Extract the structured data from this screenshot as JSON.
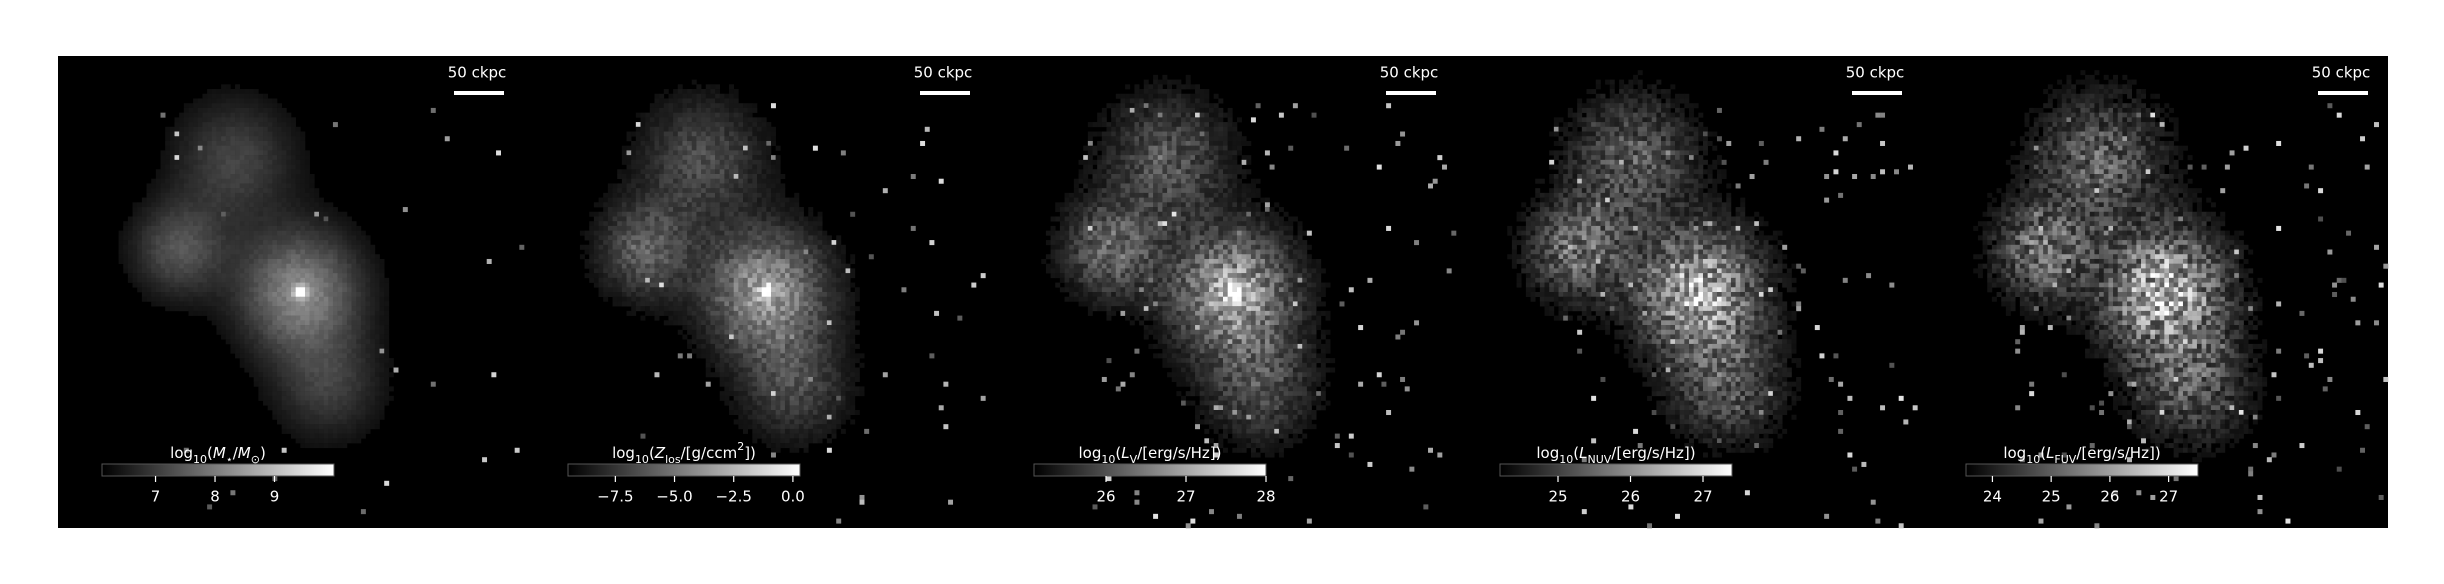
{
  "chart_data": [
    {
      "type": "image",
      "scale_bar": "50 ckpc",
      "colorbar_label": [
        {
          "t": "log"
        },
        {
          "t": "10",
          "sub": true
        },
        {
          "t": "("
        },
        {
          "t": "M",
          "it": true
        },
        {
          "t": "⋆",
          "sub": true
        },
        {
          "t": "/"
        },
        {
          "t": "M",
          "it": true
        },
        {
          "t": "⊙",
          "sub": true
        },
        {
          "t": ")"
        }
      ],
      "clim": [
        6.1,
        10.0
      ],
      "cticks": [
        7,
        8,
        9
      ]
    },
    {
      "type": "image",
      "scale_bar": "50 ckpc",
      "colorbar_label": [
        {
          "t": "log"
        },
        {
          "t": "10",
          "sub": true
        },
        {
          "t": "("
        },
        {
          "t": "Z",
          "it": true
        },
        {
          "t": "los",
          "sub": true
        },
        {
          "t": "/[g/ccm"
        },
        {
          "t": "2",
          "sup": true
        },
        {
          "t": "])"
        }
      ],
      "clim": [
        -9.5,
        0.3
      ],
      "cticks": [
        {
          "value": -7.5,
          "label": "−7.5"
        },
        {
          "value": -5.0,
          "label": "−5.0"
        },
        {
          "value": -2.5,
          "label": "−2.5"
        },
        {
          "value": 0.0,
          "label": "0.0"
        }
      ]
    },
    {
      "type": "image",
      "scale_bar": "50 ckpc",
      "colorbar_label": [
        {
          "t": "log"
        },
        {
          "t": "10",
          "sub": true
        },
        {
          "t": "("
        },
        {
          "t": "L",
          "it": true
        },
        {
          "t": "V",
          "sub": true
        },
        {
          "t": "/[erg/s/Hz])"
        }
      ],
      "clim": [
        25.1,
        28.0
      ],
      "cticks": [
        26,
        27,
        28
      ]
    },
    {
      "type": "image",
      "scale_bar": "50 ckpc",
      "colorbar_label": [
        {
          "t": "log"
        },
        {
          "t": "10",
          "sub": true
        },
        {
          "t": "("
        },
        {
          "t": "L",
          "it": true
        },
        {
          "t": "NUV",
          "sub": true
        },
        {
          "t": "/[erg/s/Hz])"
        }
      ],
      "clim": [
        24.2,
        27.4
      ],
      "cticks": [
        25,
        26,
        27
      ]
    },
    {
      "type": "image",
      "scale_bar": "50 ckpc",
      "colorbar_label": [
        {
          "t": "log"
        },
        {
          "t": "10",
          "sub": true
        },
        {
          "t": "("
        },
        {
          "t": "L",
          "it": true
        },
        {
          "t": "FUV",
          "sub": true
        },
        {
          "t": "/[erg/s/Hz])"
        }
      ],
      "clim": [
        23.55,
        27.5
      ],
      "cticks": [
        24,
        25,
        26,
        27
      ]
    }
  ]
}
